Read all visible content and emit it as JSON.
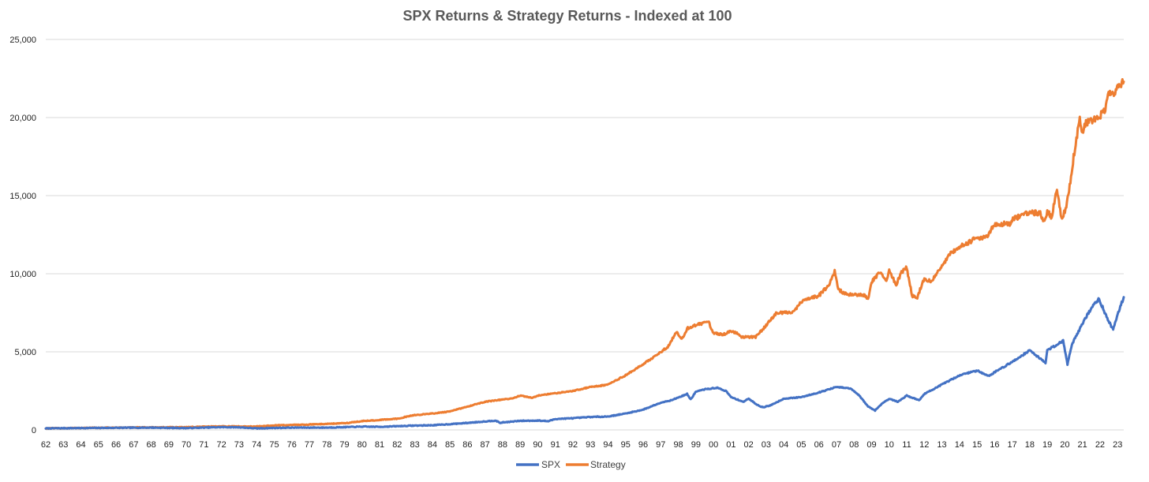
{
  "chart_data": {
    "type": "line",
    "title": "SPX Returns & Strategy Returns - Indexed at 100",
    "xlabel": "",
    "ylabel": "",
    "ylim": [
      0,
      25000
    ],
    "xlim": [
      1962,
      2023.35
    ],
    "y_ticks": [
      {
        "value": 0,
        "label": "0"
      },
      {
        "value": 5000,
        "label": "5,000"
      },
      {
        "value": 10000,
        "label": "10,000"
      },
      {
        "value": 15000,
        "label": "15,000"
      },
      {
        "value": 20000,
        "label": "20,000"
      },
      {
        "value": 25000,
        "label": "25,000"
      }
    ],
    "x_ticks": [
      {
        "value": 1962,
        "label": "62"
      },
      {
        "value": 1963,
        "label": "63"
      },
      {
        "value": 1964,
        "label": "64"
      },
      {
        "value": 1965,
        "label": "65"
      },
      {
        "value": 1966,
        "label": "66"
      },
      {
        "value": 1967,
        "label": "67"
      },
      {
        "value": 1968,
        "label": "68"
      },
      {
        "value": 1969,
        "label": "69"
      },
      {
        "value": 1970,
        "label": "70"
      },
      {
        "value": 1971,
        "label": "71"
      },
      {
        "value": 1972,
        "label": "72"
      },
      {
        "value": 1973,
        "label": "73"
      },
      {
        "value": 1974,
        "label": "74"
      },
      {
        "value": 1975,
        "label": "75"
      },
      {
        "value": 1976,
        "label": "76"
      },
      {
        "value": 1977,
        "label": "77"
      },
      {
        "value": 1978,
        "label": "78"
      },
      {
        "value": 1979,
        "label": "79"
      },
      {
        "value": 1980,
        "label": "80"
      },
      {
        "value": 1981,
        "label": "81"
      },
      {
        "value": 1982,
        "label": "82"
      },
      {
        "value": 1983,
        "label": "83"
      },
      {
        "value": 1984,
        "label": "84"
      },
      {
        "value": 1985,
        "label": "85"
      },
      {
        "value": 1986,
        "label": "86"
      },
      {
        "value": 1987,
        "label": "87"
      },
      {
        "value": 1988,
        "label": "88"
      },
      {
        "value": 1989,
        "label": "89"
      },
      {
        "value": 1990,
        "label": "90"
      },
      {
        "value": 1991,
        "label": "91"
      },
      {
        "value": 1992,
        "label": "92"
      },
      {
        "value": 1993,
        "label": "93"
      },
      {
        "value": 1994,
        "label": "94"
      },
      {
        "value": 1995,
        "label": "95"
      },
      {
        "value": 1996,
        "label": "96"
      },
      {
        "value": 1997,
        "label": "97"
      },
      {
        "value": 1998,
        "label": "98"
      },
      {
        "value": 1999,
        "label": "99"
      },
      {
        "value": 2000,
        "label": "00"
      },
      {
        "value": 2001,
        "label": "01"
      },
      {
        "value": 2002,
        "label": "02"
      },
      {
        "value": 2003,
        "label": "03"
      },
      {
        "value": 2004,
        "label": "04"
      },
      {
        "value": 2005,
        "label": "05"
      },
      {
        "value": 2006,
        "label": "06"
      },
      {
        "value": 2007,
        "label": "07"
      },
      {
        "value": 2008,
        "label": "08"
      },
      {
        "value": 2009,
        "label": "09"
      },
      {
        "value": 2010,
        "label": "10"
      },
      {
        "value": 2011,
        "label": "11"
      },
      {
        "value": 2012,
        "label": "12"
      },
      {
        "value": 2013,
        "label": "13"
      },
      {
        "value": 2014,
        "label": "14"
      },
      {
        "value": 2015,
        "label": "15"
      },
      {
        "value": 2016,
        "label": "16"
      },
      {
        "value": 2017,
        "label": "17"
      },
      {
        "value": 2018,
        "label": "18"
      },
      {
        "value": 2019,
        "label": "19"
      },
      {
        "value": 2020,
        "label": "20"
      },
      {
        "value": 2021,
        "label": "21"
      },
      {
        "value": 2022,
        "label": "22"
      },
      {
        "value": 2023,
        "label": "23"
      }
    ],
    "grid": true,
    "legend_position": "bottom-center",
    "series": [
      {
        "name": "SPX",
        "color": "#4472C4",
        "points": [
          [
            1962,
            100
          ],
          [
            1965,
            130
          ],
          [
            1968,
            150
          ],
          [
            1970,
            120
          ],
          [
            1972,
            180
          ],
          [
            1973,
            170
          ],
          [
            1974,
            100
          ],
          [
            1975,
            130
          ],
          [
            1976,
            150
          ],
          [
            1978,
            150
          ],
          [
            1980,
            210
          ],
          [
            1981,
            200
          ],
          [
            1982,
            240
          ],
          [
            1983,
            280
          ],
          [
            1984,
            300
          ],
          [
            1985,
            370
          ],
          [
            1986,
            450
          ],
          [
            1987.6,
            600
          ],
          [
            1987.85,
            450
          ],
          [
            1988,
            480
          ],
          [
            1989,
            580
          ],
          [
            1990,
            600
          ],
          [
            1990.6,
            560
          ],
          [
            1991,
            700
          ],
          [
            1992,
            750
          ],
          [
            1993,
            830
          ],
          [
            1994,
            860
          ],
          [
            1995,
            1050
          ],
          [
            1996,
            1300
          ],
          [
            1997,
            1750
          ],
          [
            1997.6,
            1900
          ],
          [
            1998.5,
            2300
          ],
          [
            1998.7,
            1950
          ],
          [
            1999,
            2450
          ],
          [
            1999.5,
            2600
          ],
          [
            2000.2,
            2700
          ],
          [
            2000.7,
            2500
          ],
          [
            2001,
            2100
          ],
          [
            2001.7,
            1800
          ],
          [
            2002,
            2000
          ],
          [
            2002.5,
            1600
          ],
          [
            2002.8,
            1450
          ],
          [
            2003.2,
            1550
          ],
          [
            2004,
            2000
          ],
          [
            2005,
            2100
          ],
          [
            2006,
            2400
          ],
          [
            2007,
            2750
          ],
          [
            2007.8,
            2650
          ],
          [
            2008.3,
            2200
          ],
          [
            2008.8,
            1500
          ],
          [
            2009.2,
            1250
          ],
          [
            2009.6,
            1700
          ],
          [
            2010,
            2000
          ],
          [
            2010.5,
            1800
          ],
          [
            2011,
            2200
          ],
          [
            2011.7,
            1900
          ],
          [
            2012,
            2300
          ],
          [
            2013,
            2900
          ],
          [
            2014,
            3500
          ],
          [
            2015,
            3800
          ],
          [
            2015.7,
            3450
          ],
          [
            2016,
            3700
          ],
          [
            2017,
            4350
          ],
          [
            2018,
            5100
          ],
          [
            2018.9,
            4300
          ],
          [
            2019,
            5100
          ],
          [
            2019.9,
            5700
          ],
          [
            2020.15,
            4200
          ],
          [
            2020.4,
            5500
          ],
          [
            2021,
            6800
          ],
          [
            2021.5,
            7800
          ],
          [
            2021.95,
            8400
          ],
          [
            2022.3,
            7400
          ],
          [
            2022.75,
            6400
          ],
          [
            2023,
            7400
          ],
          [
            2023.35,
            8500
          ]
        ]
      },
      {
        "name": "Strategy",
        "color": "#ED7D31",
        "points": [
          [
            1962,
            100
          ],
          [
            1965,
            140
          ],
          [
            1970,
            180
          ],
          [
            1972,
            230
          ],
          [
            1974,
            220
          ],
          [
            1975,
            290
          ],
          [
            1977,
            350
          ],
          [
            1979,
            430
          ],
          [
            1980,
            560
          ],
          [
            1981,
            640
          ],
          [
            1982,
            720
          ],
          [
            1983,
            950
          ],
          [
            1984,
            1050
          ],
          [
            1985,
            1180
          ],
          [
            1986,
            1500
          ],
          [
            1987,
            1800
          ],
          [
            1988,
            1950
          ],
          [
            1988.5,
            2000
          ],
          [
            1989,
            2200
          ],
          [
            1989.7,
            2050
          ],
          [
            1990,
            2200
          ],
          [
            1991,
            2350
          ],
          [
            1992,
            2500
          ],
          [
            1993,
            2750
          ],
          [
            1994,
            2900
          ],
          [
            1995,
            3500
          ],
          [
            1996,
            4200
          ],
          [
            1997,
            5000
          ],
          [
            1997.4,
            5300
          ],
          [
            1997.9,
            6300
          ],
          [
            1998.2,
            5800
          ],
          [
            1998.5,
            6500
          ],
          [
            1999,
            6700
          ],
          [
            1999.7,
            6950
          ],
          [
            2000,
            6200
          ],
          [
            2000.5,
            6100
          ],
          [
            2001,
            6300
          ],
          [
            2001.3,
            6200
          ],
          [
            2001.6,
            5950
          ],
          [
            2002.4,
            5950
          ],
          [
            2003,
            6700
          ],
          [
            2003.6,
            7500
          ],
          [
            2004.5,
            7500
          ],
          [
            2005,
            8200
          ],
          [
            2006,
            8600
          ],
          [
            2006.6,
            9300
          ],
          [
            2006.9,
            10200
          ],
          [
            2007.1,
            9000
          ],
          [
            2007.4,
            8800
          ],
          [
            2007.6,
            8650
          ],
          [
            2008.6,
            8650
          ],
          [
            2008.8,
            8300
          ],
          [
            2009,
            9500
          ],
          [
            2009.5,
            10100
          ],
          [
            2009.8,
            9500
          ],
          [
            2010,
            10200
          ],
          [
            2010.4,
            9300
          ],
          [
            2010.7,
            10100
          ],
          [
            2011,
            10400
          ],
          [
            2011.3,
            8600
          ],
          [
            2011.6,
            8500
          ],
          [
            2012,
            9700
          ],
          [
            2012.4,
            9500
          ],
          [
            2013,
            10500
          ],
          [
            2013.5,
            11300
          ],
          [
            2014,
            11700
          ],
          [
            2015,
            12300
          ],
          [
            2015.6,
            12400
          ],
          [
            2016,
            13200
          ],
          [
            2016.9,
            13200
          ],
          [
            2017,
            13500
          ],
          [
            2018,
            13900
          ],
          [
            2018.6,
            13900
          ],
          [
            2018.8,
            13300
          ],
          [
            2019,
            14000
          ],
          [
            2019.25,
            13600
          ],
          [
            2019.55,
            15500
          ],
          [
            2019.8,
            13500
          ],
          [
            2020,
            14000
          ],
          [
            2020.2,
            15000
          ],
          [
            2020.5,
            17500
          ],
          [
            2020.85,
            19900
          ],
          [
            2021,
            19000
          ],
          [
            2021.2,
            19700
          ],
          [
            2021.6,
            19800
          ],
          [
            2022.3,
            20400
          ],
          [
            2022.45,
            21400
          ],
          [
            2022.9,
            21700
          ],
          [
            2023.35,
            22300
          ]
        ]
      }
    ]
  }
}
